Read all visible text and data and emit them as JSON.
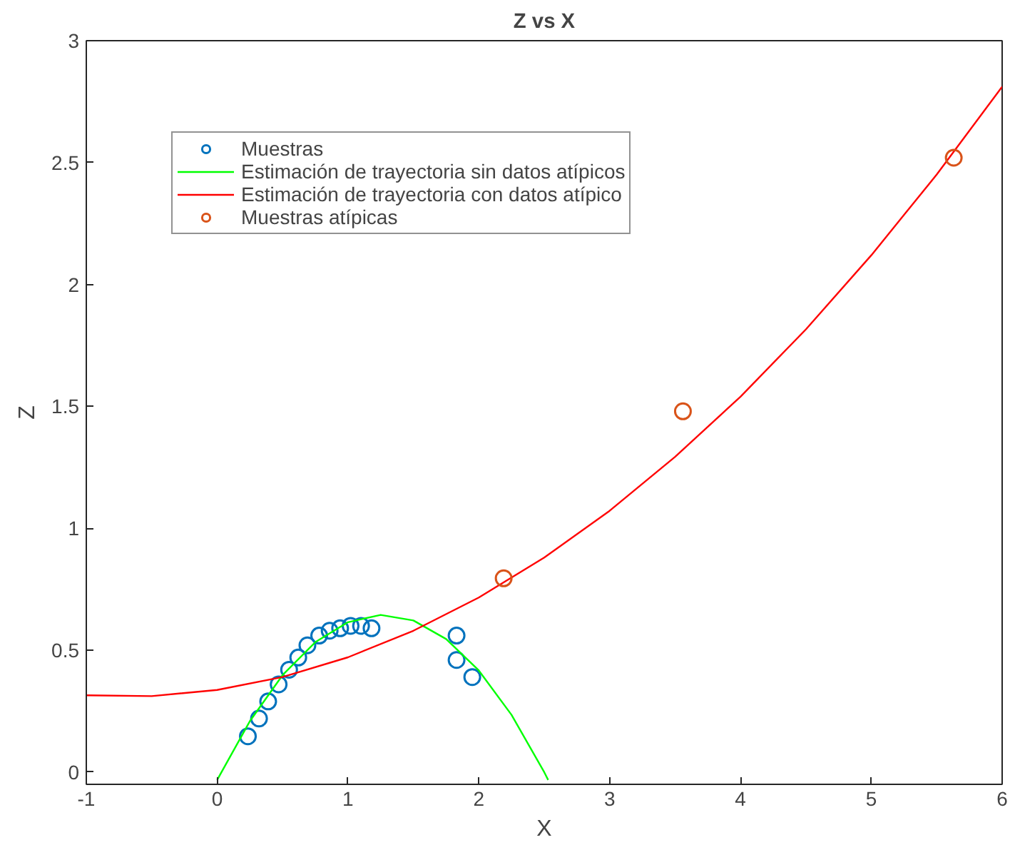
{
  "chart_data": {
    "type": "scatter",
    "title": "Z vs X",
    "xlabel": "X",
    "ylabel": "Z",
    "xlim": [
      -1,
      6
    ],
    "ylim": [
      -0.05,
      3
    ],
    "xticks": [
      -1,
      0,
      1,
      2,
      3,
      4,
      5,
      6
    ],
    "yticks": [
      0,
      0.5,
      1,
      1.5,
      2,
      2.5,
      3
    ],
    "grid": false,
    "legend": "top left",
    "marker": "circle",
    "series": [
      {
        "name": "Muestras",
        "color": "#0072bd",
        "x": [
          0.235,
          0.32,
          0.39,
          0.47,
          0.55,
          0.62,
          0.69,
          0.78,
          0.86,
          0.94,
          1.02,
          1.1,
          1.18,
          1.83,
          1.83,
          1.95
        ],
        "values": [
          0.147,
          0.22,
          0.29,
          0.36,
          0.42,
          0.47,
          0.52,
          0.56,
          0.58,
          0.59,
          0.6,
          0.6,
          0.59,
          0.56,
          0.46,
          0.39
        ]
      },
      {
        "name": "Estimación de trayectoria sin datos atípicos",
        "type": "line",
        "marker": "none",
        "line_style": "solid",
        "color": "#00ff00",
        "x": [
          0,
          0.25,
          0.5,
          0.75,
          1.0,
          1.25,
          1.5,
          1.75,
          2.0,
          2.25,
          2.5,
          2.53
        ],
        "values": [
          -0.032,
          0.209,
          0.398,
          0.533,
          0.615,
          0.645,
          0.622,
          0.546,
          0.417,
          0.235,
          0,
          -0.032
        ]
      },
      {
        "name": "Estimación de trayectoria con datos atípico",
        "type": "line",
        "marker": "none",
        "line_style": "solid",
        "color": "#ff0000",
        "x": [
          -1,
          -0.5,
          0,
          0.5,
          1,
          1.5,
          2,
          2.5,
          3,
          3.5,
          4,
          4.5,
          5,
          5.5,
          6
        ],
        "values": [
          0.315,
          0.312,
          0.337,
          0.39,
          0.471,
          0.58,
          0.716,
          0.88,
          1.072,
          1.293,
          1.54,
          1.816,
          2.12,
          2.451,
          2.811
        ]
      },
      {
        "name": "Muestras atípicas",
        "color": "#d95319",
        "x": [
          2.19,
          3.56,
          5.63
        ],
        "values": [
          0.795,
          1.48,
          2.52
        ]
      }
    ]
  }
}
